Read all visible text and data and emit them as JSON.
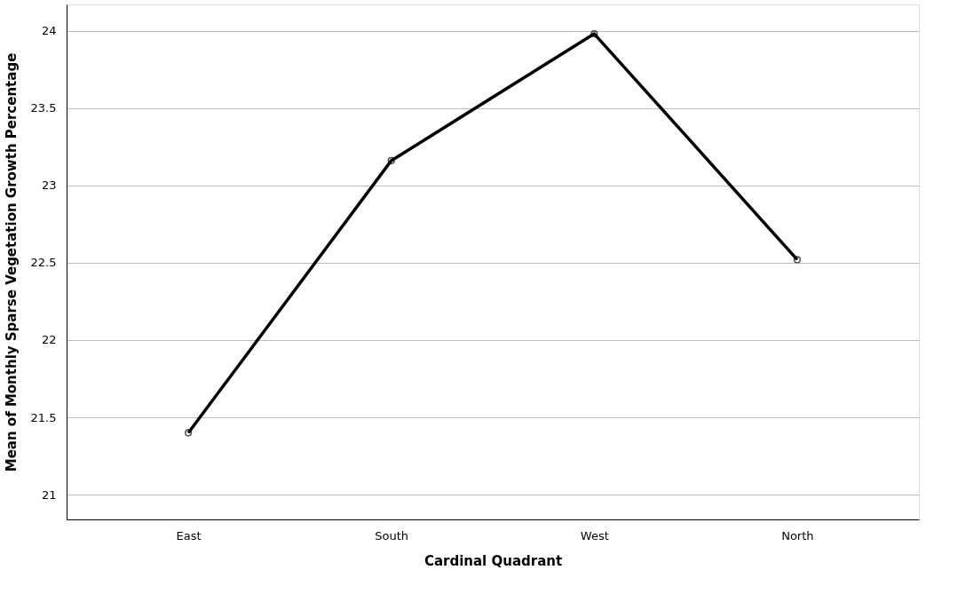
{
  "chart_data": {
    "type": "line",
    "xlabel": "Cardinal Quadrant",
    "ylabel": "Mean of Monthly Sparse Vegetation Growth Percentage",
    "categories": [
      "East",
      "South",
      "West",
      "North"
    ],
    "series": [
      {
        "color": "#000000",
        "values": [
          21.4,
          23.16,
          23.98,
          22.52
        ]
      }
    ],
    "ylim": [
      20.84,
      24.17
    ],
    "yticks": [
      21,
      21.5,
      22,
      22.5,
      23,
      23.5,
      24
    ],
    "grid": "y",
    "marker": "circle",
    "line_style": "solid"
  }
}
